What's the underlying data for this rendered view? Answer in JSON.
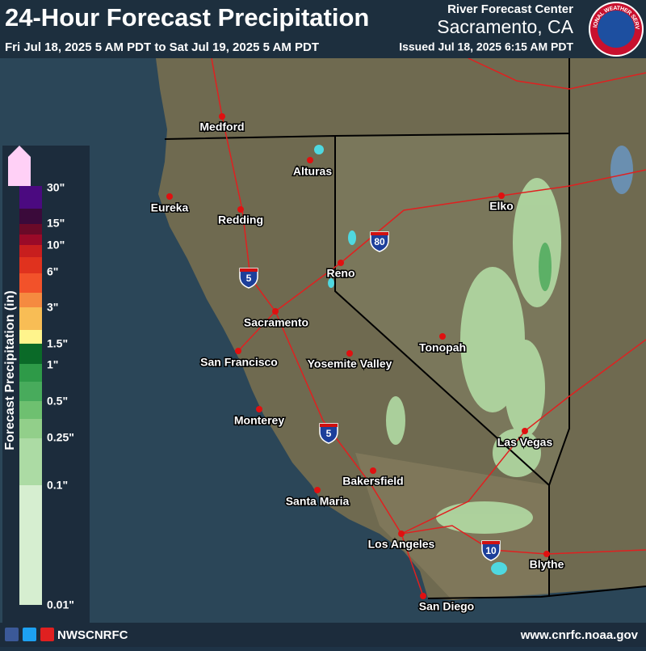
{
  "header": {
    "title": "24-Hour Forecast Precipitation",
    "period": "Fri Jul 18, 2025 5 AM PDT to Sat Jul 19, 2025 5 AM PDT",
    "center_label": "River Forecast Center",
    "center_name": "Sacramento, CA",
    "issued": "Issued Jul 18, 2025 6:15 AM PDT",
    "logo_text": "NATIONAL WEATHER SERVICE"
  },
  "legend": {
    "title": "Forecast Precipitation (in)",
    "labels": [
      "30\"",
      "15\"",
      "10\"",
      "6\"",
      "3\"",
      "1.5\"",
      "1\"",
      "0.5\"",
      "0.25\"",
      "0.1\"",
      "0.01\""
    ]
  },
  "cities": [
    "Medford",
    "Alturas",
    "Eureka",
    "Redding",
    "Elko",
    "Reno",
    "Sacramento",
    "San Francisco",
    "Yosemite Valley",
    "Tonopah",
    "Monterey",
    "Las Vegas",
    "Bakersfield",
    "Santa Maria",
    "Los Angeles",
    "Blythe",
    "San Diego"
  ],
  "interstates": [
    "80",
    "5",
    "5",
    "10"
  ],
  "footer": {
    "handle": "NWSCNRFC",
    "url": "www.cnrfc.noaa.gov"
  }
}
